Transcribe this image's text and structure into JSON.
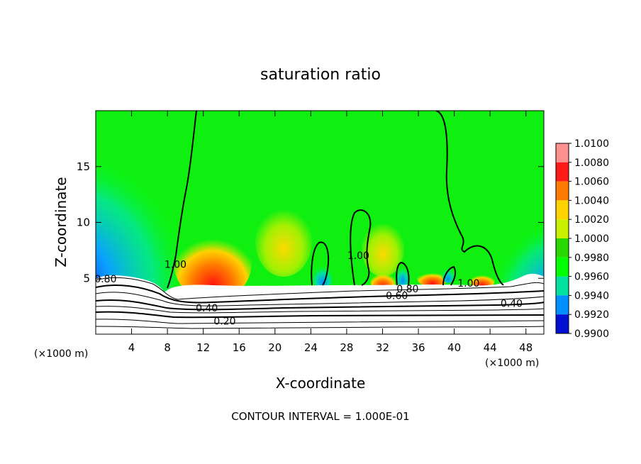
{
  "chart_data": {
    "type": "heatmap",
    "title": "saturation ratio",
    "xlabel": "X-coordinate",
    "ylabel": "Z-coordinate",
    "x_unit_left": "(×1000 m)",
    "x_unit_right": "(×1000 m)",
    "xlim": [
      0,
      50
    ],
    "ylim": [
      0,
      20
    ],
    "x_ticks": [
      4,
      8,
      12,
      16,
      20,
      24,
      28,
      32,
      36,
      40,
      44,
      48
    ],
    "y_ticks": [
      5,
      10,
      15
    ],
    "colorbar": {
      "levels": [
        "1.0100",
        "1.0080",
        "1.0060",
        "1.0040",
        "1.0020",
        "1.0000",
        "0.9980",
        "0.9960",
        "0.9940",
        "0.9920",
        "0.9900"
      ],
      "colors": [
        "#ff9090",
        "#ff1a1a",
        "#ff7a00",
        "#ffd200",
        "#c8f000",
        "#28d800",
        "#00ff00",
        "#00e0a0",
        "#0090ff",
        "#0010d0",
        "#6a00a0"
      ]
    },
    "contour_labels": [
      {
        "text": "1.00",
        "x": 8.9,
        "z": 6.2
      },
      {
        "text": "1.00",
        "x": 29.3,
        "z": 7.0
      },
      {
        "text": "1.00",
        "x": 41.6,
        "z": 4.5
      },
      {
        "text": "0.80",
        "x": 1.1,
        "z": 4.9
      },
      {
        "text": "0.80",
        "x": 34.8,
        "z": 4.0
      },
      {
        "text": "0.60",
        "x": 33.6,
        "z": 3.4
      },
      {
        "text": "0.40",
        "x": 12.4,
        "z": 2.3
      },
      {
        "text": "0.40",
        "x": 46.4,
        "z": 2.7
      },
      {
        "text": "0.20",
        "x": 14.4,
        "z": 1.1
      }
    ],
    "contour_interval_text": "CONTOUR INTERVAL = 1.000E-01"
  }
}
